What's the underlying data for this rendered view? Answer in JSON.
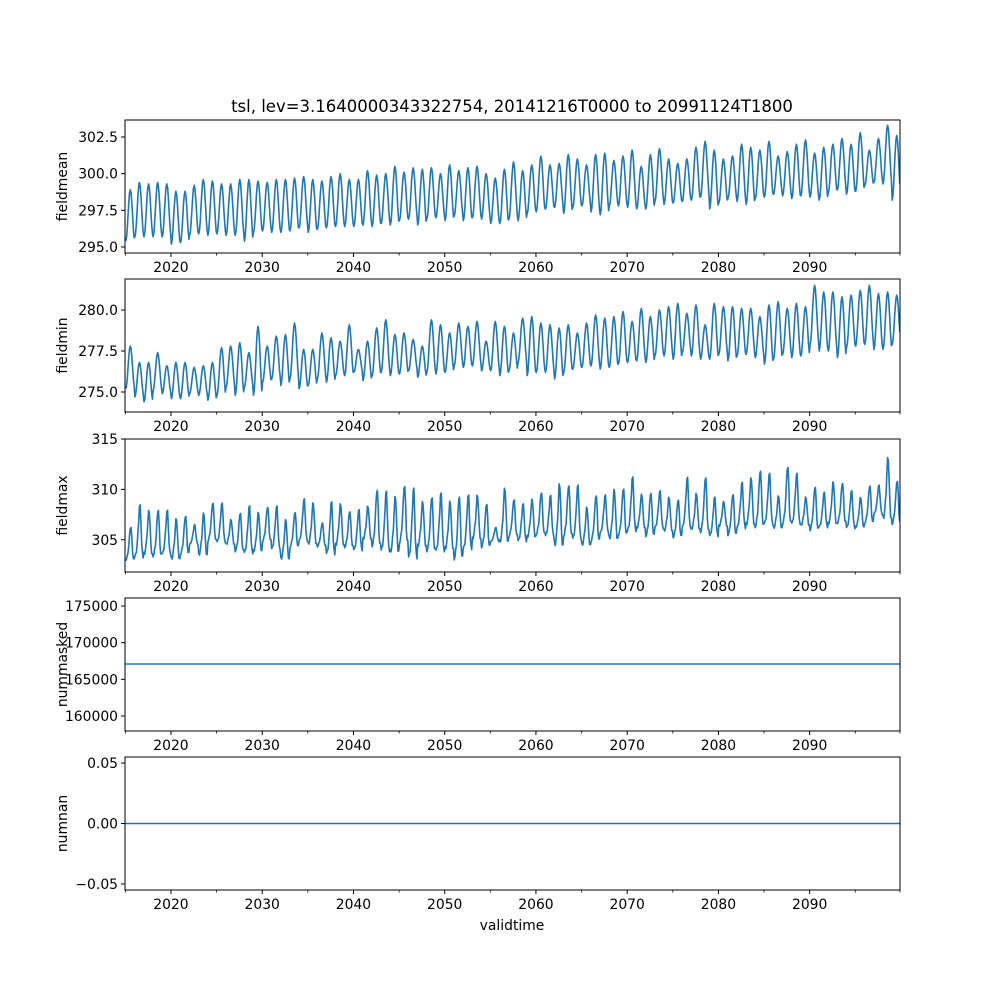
{
  "chart_data": {
    "type": "line",
    "title": "tsl, lev=3.1640000343322754, 20141216T0000 to 20991124T1800",
    "xlabel": "validtime",
    "xlim": [
      2014.96,
      2099.9
    ],
    "xticks": [
      2020,
      2030,
      2040,
      2050,
      2060,
      2070,
      2080,
      2090
    ],
    "xtick_labels": [
      "2020",
      "2030",
      "2040",
      "2050",
      "2060",
      "2070",
      "2080",
      "2090"
    ],
    "xminor_ticks": [
      2015,
      2025,
      2035,
      2045,
      2055,
      2065,
      2075,
      2085,
      2095,
      2100
    ],
    "line_color": "#1f77b4",
    "grid": false,
    "series_note": "monthly values; per-year seasonal maximum and minimum listed for years 2015-2099",
    "years_start": 2015,
    "panels": [
      {
        "ylabel": "fieldmean",
        "ylim": [
          294.59,
          303.66
        ],
        "yticks": [
          295.0,
          297.5,
          300.0,
          302.5
        ],
        "ytick_labels": [
          "295.0",
          "297.5",
          "300.0",
          "302.5"
        ],
        "shape": "sine",
        "annual_max": [
          298.9,
          299.4,
          299.3,
          299.4,
          299.3,
          298.8,
          298.8,
          299.2,
          299.6,
          299.5,
          299.3,
          299.3,
          299.6,
          299.6,
          299.5,
          299.4,
          299.6,
          299.6,
          299.7,
          299.8,
          299.6,
          299.5,
          299.8,
          300.0,
          299.6,
          299.6,
          300.2,
          299.9,
          300.0,
          300.5,
          300.1,
          300.4,
          300.3,
          300.4,
          300.0,
          300.6,
          300.2,
          300.4,
          300.5,
          300.0,
          299.7,
          300.3,
          300.8,
          300.2,
          300.6,
          301.2,
          300.6,
          300.7,
          301.3,
          301.0,
          300.6,
          301.3,
          301.4,
          300.9,
          301.2,
          301.6,
          300.5,
          301.3,
          301.7,
          301.0,
          300.7,
          301.0,
          301.8,
          302.2,
          301.6,
          301.0,
          301.2,
          302.0,
          301.8,
          301.6,
          302.2,
          301.2,
          301.5,
          302.0,
          302.3,
          301.4,
          301.8,
          302.0,
          302.4,
          302.0,
          302.8,
          301.6,
          302.4,
          303.3,
          302.6
        ],
        "annual_min": [
          295.4,
          295.7,
          295.7,
          295.7,
          295.7,
          295.2,
          295.3,
          295.8,
          295.9,
          295.8,
          295.9,
          295.8,
          295.8,
          295.4,
          296.0,
          296.1,
          296.0,
          296.0,
          296.1,
          296.3,
          296.0,
          296.2,
          296.3,
          296.4,
          296.4,
          296.4,
          296.5,
          296.4,
          296.6,
          296.5,
          296.8,
          296.9,
          296.5,
          296.9,
          297.0,
          296.8,
          297.1,
          296.8,
          297.0,
          296.9,
          296.6,
          296.6,
          296.9,
          296.8,
          297.3,
          297.4,
          297.6,
          297.7,
          297.3,
          297.7,
          297.8,
          297.4,
          297.2,
          297.8,
          297.8,
          297.7,
          297.6,
          297.6,
          298.1,
          297.9,
          298.0,
          298.1,
          298.2,
          298.4,
          297.6,
          298.0,
          298.3,
          298.1,
          297.9,
          298.3,
          298.4,
          298.6,
          298.5,
          298.3,
          298.5,
          298.4,
          298.2,
          298.7,
          298.9,
          298.6,
          298.8,
          299.2,
          299.4,
          299.3,
          298.2
        ]
      },
      {
        "ylabel": "fieldmin",
        "ylim": [
          273.78,
          281.89
        ],
        "yticks": [
          275.0,
          277.5,
          280.0
        ],
        "ytick_labels": [
          "275.0",
          "277.5",
          "280.0"
        ],
        "shape": "sine",
        "annual_max": [
          277.8,
          276.8,
          276.8,
          277.4,
          276.6,
          276.8,
          276.8,
          276.5,
          276.6,
          276.8,
          277.7,
          277.8,
          278.0,
          277.4,
          279.0,
          277.8,
          278.4,
          278.5,
          279.2,
          277.6,
          277.6,
          278.6,
          278.3,
          278.1,
          279.1,
          277.6,
          278.1,
          278.9,
          279.4,
          278.5,
          278.6,
          278.2,
          277.8,
          279.4,
          279.1,
          278.6,
          279.2,
          279.0,
          279.3,
          278.1,
          279.3,
          279.0,
          278.6,
          279.5,
          279.6,
          279.2,
          279.1,
          278.9,
          279.1,
          278.6,
          279.2,
          279.7,
          279.5,
          279.6,
          279.9,
          279.3,
          280.1,
          279.6,
          280.0,
          280.2,
          280.4,
          279.8,
          280.3,
          279.1,
          280.4,
          280.2,
          280.2,
          280.1,
          280.1,
          279.6,
          280.3,
          280.5,
          280.1,
          280.4,
          280.2,
          281.5,
          281.1,
          281.1,
          280.8,
          280.9,
          281.2,
          281.5,
          281.0,
          281.1,
          280.9
        ],
        "annual_min": [
          275.2,
          274.7,
          274.4,
          275.1,
          274.9,
          274.6,
          274.6,
          274.9,
          274.8,
          274.5,
          274.8,
          275.3,
          274.8,
          275.3,
          274.8,
          275.6,
          275.8,
          275.4,
          275.8,
          275.2,
          275.4,
          275.8,
          275.6,
          276.0,
          276.0,
          276.2,
          275.7,
          276.0,
          276.2,
          276.0,
          276.1,
          276.3,
          275.9,
          276.2,
          276.1,
          276.2,
          276.6,
          276.5,
          276.6,
          276.3,
          276.3,
          276.0,
          276.3,
          276.8,
          276.0,
          276.2,
          276.2,
          275.8,
          276.2,
          276.4,
          276.5,
          276.6,
          276.4,
          276.5,
          276.7,
          276.8,
          276.9,
          276.8,
          277.2,
          277.2,
          277.0,
          277.4,
          277.2,
          277.0,
          277.0,
          277.3,
          276.9,
          277.2,
          277.3,
          277.1,
          276.7,
          277.0,
          277.3,
          277.1,
          277.2,
          277.9,
          277.5,
          277.5,
          277.1,
          277.7,
          277.8,
          277.9,
          277.6,
          277.6,
          277.9
        ]
      },
      {
        "ylabel": "fieldmax",
        "ylim": [
          301.8,
          315.0
        ],
        "yticks": [
          305,
          310,
          315
        ],
        "ytick_labels": [
          "305",
          "310",
          "315"
        ],
        "shape": "shoulder",
        "annual_max": [
          307.0,
          309.5,
          308.8,
          309.0,
          308.8,
          307.9,
          308.2,
          306.9,
          308.5,
          309.5,
          309.4,
          307.5,
          308.5,
          309.3,
          308.5,
          309.0,
          309.2,
          307.8,
          308.5,
          309.9,
          309.5,
          307.2,
          309.8,
          309.4,
          308.6,
          308.8,
          309.0,
          311.2,
          311.0,
          310.4,
          311.6,
          311.5,
          309.7,
          310.4,
          310.8,
          309.8,
          310.7,
          310.5,
          310.3,
          309.5,
          306.5,
          311.2,
          309.8,
          309.3,
          309.8,
          310.6,
          310.2,
          311.8,
          311.5,
          311.5,
          309.0,
          310.4,
          310.2,
          311.0,
          311.1,
          312.3,
          310.2,
          310.6,
          310.6,
          309.9,
          309.8,
          312.2,
          310.3,
          312.4,
          310.0,
          309.3,
          310.4,
          311.6,
          312.1,
          313.1,
          312.6,
          310.0,
          313.5,
          312.6,
          309.8,
          311.2,
          310.4,
          311.6,
          311.5,
          310.6,
          309.8,
          311.2,
          311.0,
          314.4,
          311.8
        ],
        "annual_min": [
          302.9,
          303.2,
          303.5,
          303.3,
          303.5,
          303.0,
          303.5,
          304.5,
          303.4,
          304.8,
          304.7,
          304.5,
          303.8,
          303.6,
          303.8,
          304.8,
          304.0,
          303.0,
          304.2,
          304.8,
          304.5,
          304.3,
          303.5,
          304.4,
          304.2,
          303.9,
          305.0,
          304.3,
          303.8,
          303.7,
          304.6,
          303.1,
          304.3,
          303.8,
          303.8,
          304.0,
          303.0,
          304.0,
          305.0,
          304.2,
          304.8,
          304.7,
          305.3,
          304.8,
          305.2,
          305.5,
          305.3,
          304.3,
          305.3,
          305.0,
          304.4,
          304.8,
          305.6,
          305.0,
          305.4,
          305.8,
          306.1,
          305.3,
          306.1,
          305.8,
          305.2,
          306.1,
          306.0,
          305.7,
          305.3,
          306.3,
          305.4,
          306.1,
          306.4,
          306.2,
          306.5,
          306.1,
          306.5,
          306.5,
          306.4,
          305.9,
          306.2,
          306.5,
          306.6,
          306.1,
          306.2,
          306.6,
          307.5,
          307.0,
          306.5
        ]
      },
      {
        "ylabel": "nummasked",
        "ylim": [
          157954,
          176091
        ],
        "yticks": [
          160000,
          165000,
          170000,
          175000
        ],
        "ytick_labels": [
          "160000",
          "165000",
          "170000",
          "175000"
        ],
        "shape": "constant",
        "constant_value": 167090
      },
      {
        "ylabel": "numnan",
        "ylim": [
          -0.055,
          0.055
        ],
        "yticks": [
          -0.05,
          0.0,
          0.05
        ],
        "ytick_labels": [
          "−0.05",
          "0.00",
          "0.05"
        ],
        "shape": "constant",
        "constant_value": 0
      }
    ]
  }
}
